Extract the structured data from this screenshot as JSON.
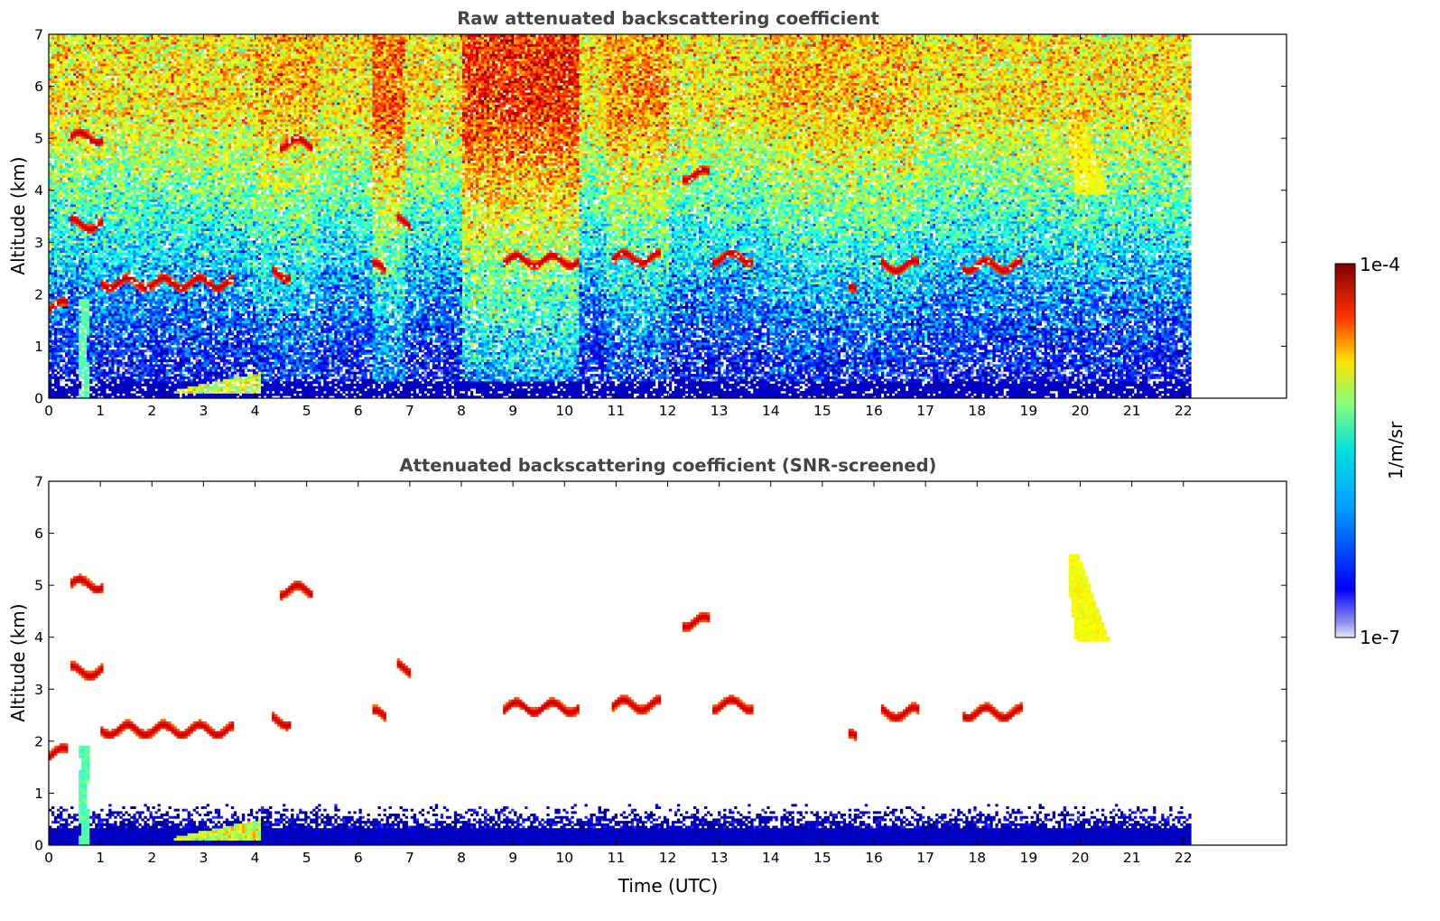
{
  "chart_data": [
    {
      "type": "heatmap",
      "title": "Raw attenuated backscattering coefficient",
      "xlabel": "",
      "ylabel": "Altitude (km)",
      "xlim": [
        0,
        24
      ],
      "ylim": [
        0,
        7
      ],
      "x_ticks": [
        "0",
        "1",
        "2",
        "3",
        "4",
        "5",
        "6",
        "7",
        "8",
        "9",
        "10",
        "11",
        "12",
        "13",
        "14",
        "15",
        "16",
        "17",
        "18",
        "19",
        "20",
        "21",
        "22"
      ],
      "y_ticks": [
        "0",
        "1",
        "2",
        "3",
        "4",
        "5",
        "6",
        "7"
      ],
      "data_end_hour": 22.15,
      "features": [
        {
          "t0": 0.0,
          "t1": 0.35,
          "alt": 1.78,
          "kind": "cloud"
        },
        {
          "t0": 0.4,
          "t1": 1.05,
          "alt": 5.02,
          "kind": "cloud"
        },
        {
          "t0": 0.4,
          "t1": 1.05,
          "alt": 3.35,
          "kind": "cloud"
        },
        {
          "t0": 1.0,
          "t1": 3.6,
          "alt": 2.22,
          "kind": "cloud"
        },
        {
          "t0": 0.55,
          "t1": 0.9,
          "alt": 1.0,
          "kind": "plume"
        },
        {
          "t0": 2.4,
          "t1": 4.1,
          "alt": 0.3,
          "kind": "aerosol"
        },
        {
          "t0": 4.35,
          "t1": 4.7,
          "alt": 2.4,
          "kind": "cloud"
        },
        {
          "t0": 4.5,
          "t1": 5.1,
          "alt": 4.9,
          "kind": "cloud"
        },
        {
          "t0": 6.25,
          "t1": 6.55,
          "alt": 2.5,
          "kind": "cloud"
        },
        {
          "t0": 6.75,
          "t1": 7.0,
          "alt": 3.4,
          "kind": "cloud"
        },
        {
          "t0": 8.8,
          "t1": 10.3,
          "alt": 2.65,
          "kind": "cloud"
        },
        {
          "t0": 10.9,
          "t1": 11.85,
          "alt": 2.7,
          "kind": "cloud"
        },
        {
          "t0": 12.3,
          "t1": 12.8,
          "alt": 4.3,
          "kind": "cloud"
        },
        {
          "t0": 12.85,
          "t1": 13.65,
          "alt": 2.7,
          "kind": "cloud"
        },
        {
          "t0": 15.5,
          "t1": 15.65,
          "alt": 2.05,
          "kind": "cloud"
        },
        {
          "t0": 16.15,
          "t1": 16.85,
          "alt": 2.55,
          "kind": "cloud"
        },
        {
          "t0": 17.7,
          "t1": 18.9,
          "alt": 2.55,
          "kind": "cloud"
        },
        {
          "t0": 19.8,
          "t1": 20.6,
          "alt": 4.2,
          "kind": "thin-cloud"
        }
      ]
    },
    {
      "type": "heatmap",
      "title": "Attenuated backscattering coefficient (SNR-screened)",
      "xlabel": "Time (UTC)",
      "ylabel": "Altitude (km)",
      "xlim": [
        0,
        24
      ],
      "ylim": [
        0,
        7
      ],
      "x_ticks": [
        "0",
        "1",
        "2",
        "3",
        "4",
        "5",
        "6",
        "7",
        "8",
        "9",
        "10",
        "11",
        "12",
        "13",
        "14",
        "15",
        "16",
        "17",
        "18",
        "19",
        "20",
        "21",
        "22"
      ],
      "y_ticks": [
        "0",
        "1",
        "2",
        "3",
        "4",
        "5",
        "6",
        "7"
      ],
      "data_end_hour": 22.15
    }
  ],
  "colorbar": {
    "min_label": "1e-7",
    "max_label": "1e-4",
    "unit_label": "1/m/sr",
    "scale": "log",
    "colormap": "jet",
    "stops": [
      "#e6e6f5",
      "#0000ff",
      "#00c8ff",
      "#7fff7f",
      "#ffdd00",
      "#ff2a00",
      "#800000"
    ]
  }
}
